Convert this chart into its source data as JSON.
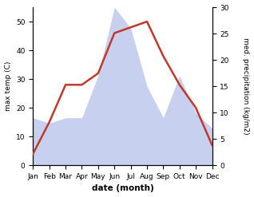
{
  "months": [
    "Jan",
    "Feb",
    "Mar",
    "Apr",
    "May",
    "Jun",
    "Jul",
    "Aug",
    "Sep",
    "Oct",
    "Nov",
    "Dec"
  ],
  "temp_max": [
    4,
    15,
    28,
    28,
    32,
    46,
    48,
    50,
    38,
    28,
    20,
    7
  ],
  "precip": [
    9,
    8,
    9,
    9,
    17,
    30,
    26,
    15,
    9,
    17,
    10,
    7
  ],
  "temp_color": "#c0392b",
  "precip_color": "#b0bce8",
  "temp_ylim": [
    0,
    55
  ],
  "precip_ylim": [
    0,
    30
  ],
  "xlabel": "date (month)",
  "ylabel_left": "max temp (C)",
  "ylabel_right": "med. precipitation (kg/m2)",
  "left_yticks": [
    0,
    10,
    20,
    30,
    40,
    50
  ],
  "right_yticks": [
    0,
    5,
    10,
    15,
    20,
    25,
    30
  ],
  "figsize": [
    3.18,
    2.47
  ],
  "dpi": 100
}
